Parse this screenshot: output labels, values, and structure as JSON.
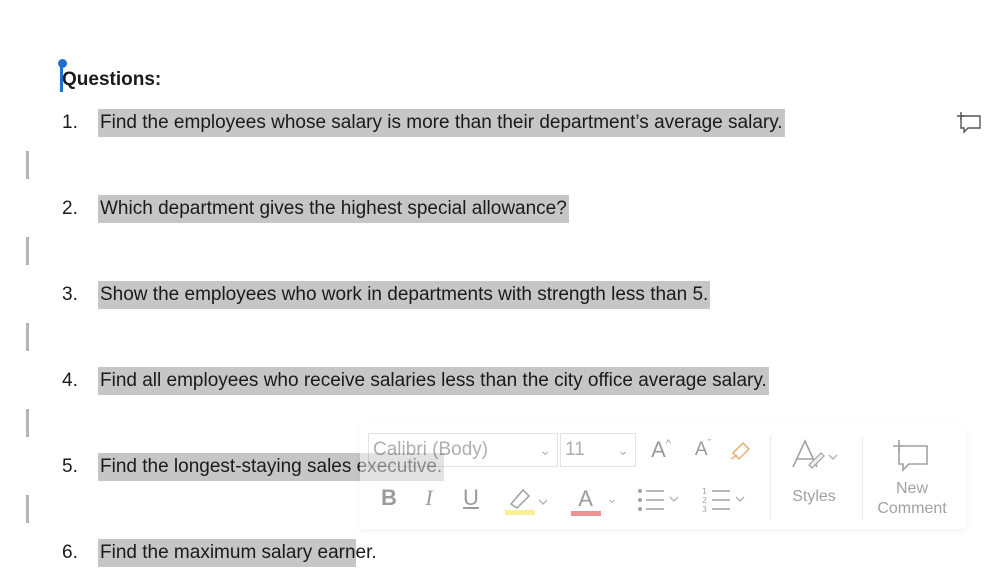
{
  "document": {
    "heading": "Questions:",
    "questions": [
      {
        "number": "1.",
        "text": "Find the employees whose salary is more than their department’s average salary."
      },
      {
        "number": "2.",
        "text": "Which department gives the highest special allowance?"
      },
      {
        "number": "3.",
        "text": "Show the employees who work in departments with strength less than 5."
      },
      {
        "number": "4.",
        "text": "Find all employees who receive salaries less than the city office average salary."
      },
      {
        "number": "5.",
        "text": "Find the longest-staying sales executive."
      },
      {
        "number": "6.",
        "text": "Find the maximum salary earner."
      }
    ]
  },
  "mini_toolbar": {
    "font_name": "Calibri (Body)",
    "font_size": "11",
    "styles_label": "Styles",
    "new_comment_label_line1": "New",
    "new_comment_label_line2": "Comment",
    "bold_label": "B",
    "italic_label": "I",
    "underline_label": "U",
    "grow_font_label": "A",
    "shrink_font_label": "A",
    "font_color_label": "A",
    "highlight_color": "#f5e642",
    "font_color": "#e03a3a"
  },
  "colors": {
    "selection": "#c6c6c6",
    "cursor": "#1f6fd1"
  }
}
